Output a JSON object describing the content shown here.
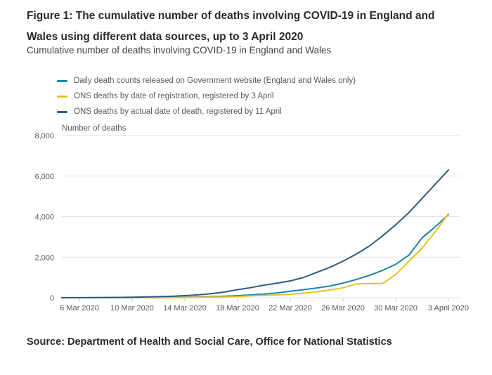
{
  "figure": {
    "title": "Figure 1: The cumulative number of deaths involving COVID-19 in England and Wales using different data sources, up to 3 April 2020",
    "subtitle": "Cumulative number of deaths involving COVID-19 in England and Wales",
    "source": "Source: Department of Health and Social Care, Office for National Statistics"
  },
  "chart_data": {
    "type": "line",
    "title": "Cumulative number of deaths involving COVID-19 in England and Wales",
    "ylabel_inline": "Number of deaths",
    "xlabel": "",
    "ylim": [
      0,
      8000
    ],
    "yticks": [
      0,
      2000,
      4000,
      6000,
      8000
    ],
    "ytick_labels": [
      "0",
      "2,000",
      "4,000",
      "6,000",
      "8,000"
    ],
    "grid": "horizontal",
    "legend_position": "top-left",
    "x": [
      "6 Mar 2020",
      "7 Mar 2020",
      "8 Mar 2020",
      "9 Mar 2020",
      "10 Mar 2020",
      "11 Mar 2020",
      "12 Mar 2020",
      "13 Mar 2020",
      "14 Mar 2020",
      "15 Mar 2020",
      "16 Mar 2020",
      "17 Mar 2020",
      "18 Mar 2020",
      "19 Mar 2020",
      "20 Mar 2020",
      "21 Mar 2020",
      "22 Mar 2020",
      "23 Mar 2020",
      "24 Mar 2020",
      "25 Mar 2020",
      "26 Mar 2020",
      "27 Mar 2020",
      "28 Mar 2020",
      "29 Mar 2020",
      "30 Mar 2020",
      "31 Mar 2020",
      "1 April 2020",
      "2 April 2020",
      "3 April 2020"
    ],
    "x_tick_labels": [
      "6 Mar 2020",
      "10 Mar 2020",
      "14 Mar 2020",
      "18 Mar 2020",
      "22 Mar 2020",
      "26 Mar 2020",
      "30 Mar 2020",
      "3 April 2020"
    ],
    "series": [
      {
        "name": "Daily death counts released on Government website (England and Wales only)",
        "color": "#1d84a5",
        "values": [
          1,
          2,
          3,
          4,
          6,
          8,
          10,
          15,
          25,
          40,
          55,
          75,
          105,
          140,
          180,
          240,
          320,
          400,
          480,
          580,
          720,
          900,
          1100,
          1350,
          1650,
          2100,
          2950,
          3500,
          4100
        ]
      },
      {
        "name": "ONS deaths by date of registration, registered by 3 April",
        "color": "#e6c229",
        "values": [
          0,
          0,
          1,
          2,
          3,
          5,
          7,
          10,
          14,
          20,
          30,
          45,
          65,
          90,
          115,
          140,
          170,
          220,
          290,
          380,
          490,
          680,
          700,
          700,
          1150,
          1800,
          2450,
          3250,
          4150
        ]
      },
      {
        "name": "ONS deaths by actual date of death, registered by 11 April",
        "color": "#2e5a80",
        "values": [
          5,
          8,
          12,
          18,
          28,
          40,
          55,
          75,
          105,
          145,
          200,
          280,
          400,
          500,
          620,
          720,
          830,
          1000,
          1250,
          1500,
          1800,
          2150,
          2550,
          3050,
          3600,
          4200,
          4900,
          5600,
          6300
        ]
      }
    ]
  }
}
